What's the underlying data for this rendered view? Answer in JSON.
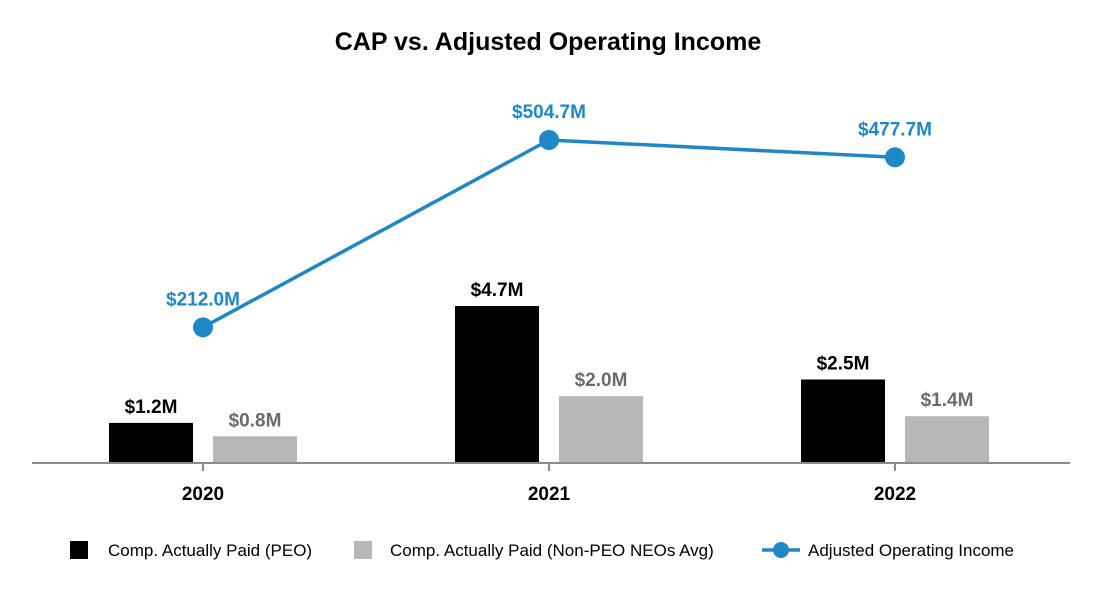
{
  "chart_data": {
    "type": "bar",
    "title": "CAP vs. Adjusted Operating Income",
    "xlabel": "",
    "ylabel": "",
    "categories": [
      "2020",
      "2021",
      "2022"
    ],
    "bar_series": [
      {
        "name": "Comp. Actually Paid (PEO)",
        "values": [
          1.2,
          4.7,
          2.5
        ],
        "labels": [
          "$1.2M",
          "$4.7M",
          "$2.5M"
        ],
        "color": "#000000",
        "label_color": "#000000"
      },
      {
        "name": "Comp. Actually Paid (Non-PEO NEOs Avg)",
        "values": [
          0.8,
          2.0,
          1.4
        ],
        "labels": [
          "$0.8M",
          "$2.0M",
          "$1.4M"
        ],
        "color": "#b7b7b7",
        "label_color": "#6b6b6b"
      }
    ],
    "line_series": [
      {
        "name": "Adjusted Operating Income",
        "values": [
          212.0,
          504.7,
          477.7
        ],
        "labels": [
          "$212.0M",
          "$504.7M",
          "$477.7M"
        ],
        "color": "#1e88c7"
      }
    ],
    "bar_axis_range": [
      0,
      9.6
    ],
    "line_axis_range": [
      0,
      580
    ],
    "grid": false,
    "legend_position": "bottom"
  }
}
